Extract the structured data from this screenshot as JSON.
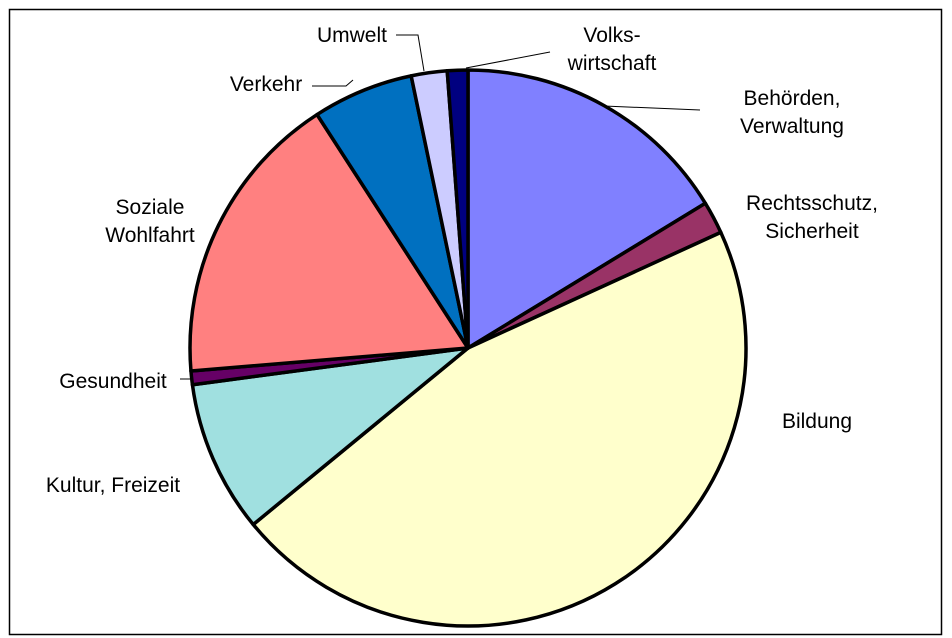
{
  "chart_data": {
    "type": "pie",
    "start_angle_deg": 90,
    "direction": "clockwise",
    "slices": [
      {
        "label": "Behörden, Verwaltung",
        "lines": [
          "Behörden,",
          "Verwaltung"
        ],
        "value": 16.4,
        "color": "#8080ff"
      },
      {
        "label": "Rechtsschutz, Sicherheit",
        "lines": [
          "Rechtsschutz,",
          "Sicherheit"
        ],
        "value": 1.9,
        "color": "#993366"
      },
      {
        "label": "Bildung",
        "lines": [
          "Bildung"
        ],
        "value": 46.2,
        "color": "#ffffcc"
      },
      {
        "label": "Kultur, Freizeit",
        "lines": [
          "Kultur, Freizeit"
        ],
        "value": 8.9,
        "color": "#a0e0e0"
      },
      {
        "label": "Gesundheit",
        "lines": [
          "Gesundheit"
        ],
        "value": 0.8,
        "color": "#660066"
      },
      {
        "label": "Soziale Wohlfahrt",
        "lines": [
          "Soziale",
          "Wohlfahrt"
        ],
        "value": 17.3,
        "color": "#ff8080"
      },
      {
        "label": "Verkehr",
        "lines": [
          "Verkehr"
        ],
        "value": 5.9,
        "color": "#0070c0"
      },
      {
        "label": "Umwelt",
        "lines": [
          "Umwelt"
        ],
        "value": 2.1,
        "color": "#ccccff"
      },
      {
        "label": "Volkswirtschaft",
        "lines": [
          "Volks-",
          "wirtschaft"
        ],
        "value": 1.2,
        "color": "#000080"
      }
    ]
  }
}
